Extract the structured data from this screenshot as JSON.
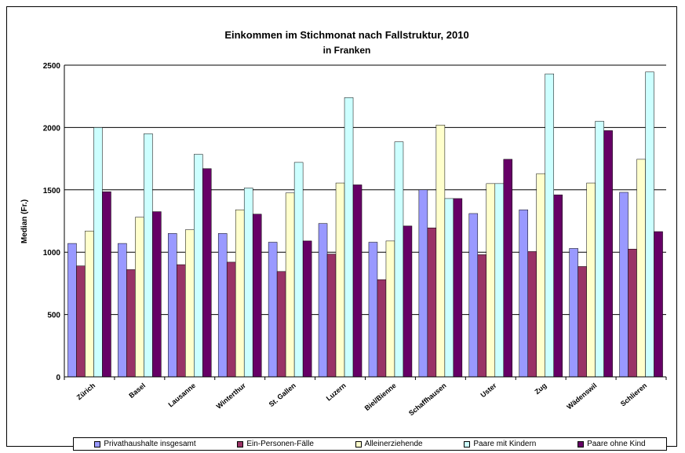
{
  "chart_data": {
    "type": "bar",
    "title": "Einkommen im Stichmonat nach Fallstruktur, 2010",
    "subtitle": "in Franken",
    "ylabel": "Median (Fr.)",
    "xlabel": "",
    "ylim": [
      0,
      2500
    ],
    "yticks": [
      0,
      500,
      1000,
      1500,
      2000,
      2500
    ],
    "grid": true,
    "legend_position": "bottom",
    "categories": [
      "Zürich",
      "Basel",
      "Lausanne",
      "Winterthur",
      "St. Gallen",
      "Luzern",
      "Biel/Bienne",
      "Schaffhausen",
      "Uster",
      "Zug",
      "Wädenswil",
      "Schlieren"
    ],
    "series": [
      {
        "name": "Privathaushalte insgesamt",
        "color": "#9999ff",
        "values": [
          1070,
          1070,
          1150,
          1150,
          1080,
          1230,
          1080,
          1500,
          1310,
          1340,
          1030,
          1480
        ]
      },
      {
        "name": "Ein-Personen-Fälle",
        "color": "#993366",
        "values": [
          890,
          860,
          900,
          920,
          845,
          985,
          780,
          1195,
          980,
          1005,
          885,
          1025
        ]
      },
      {
        "name": "Alleinerziehende",
        "color": "#ffffcc",
        "values": [
          1170,
          1280,
          1180,
          1340,
          1475,
          1555,
          1090,
          2020,
          1550,
          1630,
          1555,
          1745
        ]
      },
      {
        "name": "Paare mit Kindern",
        "color": "#ccffff",
        "values": [
          2000,
          1950,
          1785,
          1515,
          1720,
          2240,
          1885,
          1430,
          1550,
          2430,
          2050,
          2445
        ]
      },
      {
        "name": "Paare ohne Kind",
        "color": "#660066",
        "values": [
          1485,
          1325,
          1670,
          1305,
          1090,
          1540,
          1210,
          1430,
          1745,
          1460,
          1975,
          1165
        ]
      }
    ]
  }
}
